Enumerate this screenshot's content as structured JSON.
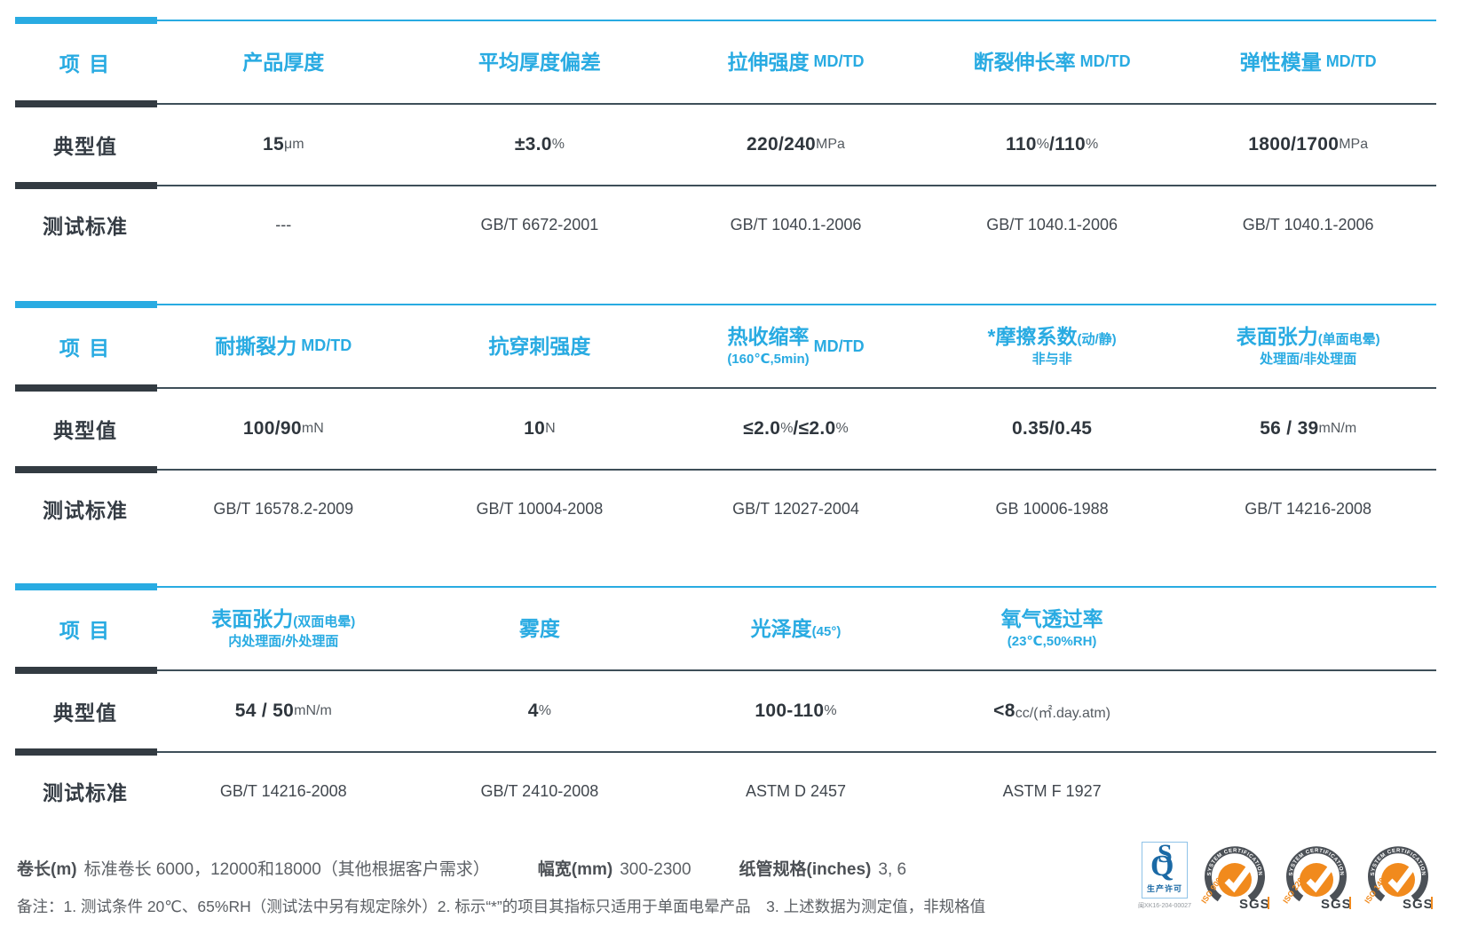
{
  "theme": {
    "accent_blue": "#29abe2",
    "dark_bar": "#333b42",
    "value_text": "#2f363d",
    "orange": "#f18a1d"
  },
  "labels": {
    "item": "项 目",
    "typical": "典型值",
    "standard": "测试标准"
  },
  "tables": [
    {
      "columns": [
        {
          "title": "产品厚度",
          "paren": "",
          "side": "",
          "under": ""
        },
        {
          "title": "平均厚度偏差",
          "paren": "",
          "side": "",
          "under": ""
        },
        {
          "title": "拉伸强度",
          "paren": "",
          "side": "MD/TD",
          "under": ""
        },
        {
          "title": "断裂伸长率",
          "paren": "",
          "side": "MD/TD",
          "under": ""
        },
        {
          "title": "弹性模量",
          "paren": "",
          "side": "MD/TD",
          "under": ""
        }
      ],
      "typical": [
        [
          {
            "t": "15",
            "b": true
          },
          {
            "t": "μm"
          }
        ],
        [
          {
            "t": "±3.0",
            "b": true
          },
          {
            "t": "%"
          }
        ],
        [
          {
            "t": "220/240",
            "b": true
          },
          {
            "t": "MPa"
          }
        ],
        [
          {
            "t": "110",
            "b": true
          },
          {
            "t": "%"
          },
          {
            "t": " / ",
            "b": true
          },
          {
            "t": "110",
            "b": true
          },
          {
            "t": "%"
          }
        ],
        [
          {
            "t": "1800/1700",
            "b": true
          },
          {
            "t": "MPa"
          }
        ]
      ],
      "standards": [
        "---",
        "GB/T 6672-2001",
        "GB/T 1040.1-2006",
        "GB/T 1040.1-2006",
        "GB/T 1040.1-2006"
      ]
    },
    {
      "columns": [
        {
          "title": "耐撕裂力",
          "paren": "",
          "side": "MD/TD",
          "under": ""
        },
        {
          "title": "抗穿刺强度",
          "paren": "",
          "side": "",
          "under": ""
        },
        {
          "title": "热收缩率",
          "paren": "",
          "side": "MD/TD",
          "under": "(160℃,5min)"
        },
        {
          "title": "*摩擦系数",
          "paren": "(动/静)",
          "side": "",
          "under": "非与非"
        },
        {
          "title": "表面张力",
          "paren": "(单面电晕)",
          "side": "",
          "under": "处理面/非处理面"
        }
      ],
      "typical": [
        [
          {
            "t": "100/90",
            "b": true
          },
          {
            "t": "mN"
          }
        ],
        [
          {
            "t": "10",
            "b": true
          },
          {
            "t": "N"
          }
        ],
        [
          {
            "t": "≤2.0",
            "b": true
          },
          {
            "t": "%"
          },
          {
            "t": " / ",
            "b": true
          },
          {
            "t": "≤2.0",
            "b": true
          },
          {
            "t": "%"
          }
        ],
        [
          {
            "t": "0.35/0.45",
            "b": true
          }
        ],
        [
          {
            "t": "56 / 39",
            "b": true
          },
          {
            "t": "mN/m"
          }
        ]
      ],
      "standards": [
        "GB/T 16578.2-2009",
        "GB/T 10004-2008",
        "GB/T 12027-2004",
        "GB 10006-1988",
        "GB/T 14216-2008"
      ]
    },
    {
      "columns": [
        {
          "title": "表面张力",
          "paren": "(双面电晕)",
          "side": "",
          "under": "内处理面/外处理面"
        },
        {
          "title": "雾度",
          "paren": "",
          "side": "",
          "under": ""
        },
        {
          "title": "光泽度",
          "paren": "(45°)",
          "side": "",
          "under": ""
        },
        {
          "title": "氧气透过率",
          "paren": "",
          "side": "",
          "under": "(23℃,50%RH)"
        },
        {
          "title": "",
          "paren": "",
          "side": "",
          "under": ""
        }
      ],
      "typical": [
        [
          {
            "t": "54 / 50",
            "b": true
          },
          {
            "t": "mN/m"
          }
        ],
        [
          {
            "t": "4",
            "b": true
          },
          {
            "t": "%"
          }
        ],
        [
          {
            "t": "100-110",
            "b": true
          },
          {
            "t": "%"
          }
        ],
        [
          {
            "t": "<8",
            "b": true
          },
          {
            "t": "cc/(㎡.day.atm)"
          }
        ],
        []
      ],
      "standards": [
        "GB/T 14216-2008",
        "GB/T 2410-2008",
        "ASTM D 2457",
        "ASTM F 1927",
        ""
      ]
    }
  ],
  "footer": {
    "roll": {
      "label": "卷长(m)",
      "text": "标准卷长 6000，12000和18000（其他根据客户需求）"
    },
    "width": {
      "label": "幅宽(mm)",
      "text": "300-2300"
    },
    "core": {
      "label": "纸管规格(inches)",
      "text": "3, 6"
    },
    "remark": "备注：1. 测试条件 20℃、65%RH（测试法中另有规定除外）2. 标示“*”的项目其指标只适用于单面电晕产品　3. 上述数据为测定值，非规格值"
  },
  "certs": {
    "qs": {
      "letter_s": "S",
      "letter_q": "Q",
      "label": "生产许可",
      "code": "闽XK16-204-00027"
    },
    "arc_text": "SYSTEM CERTIFICATION",
    "sgs_label": "SGS",
    "badges": [
      {
        "iso": "ISO 9001"
      },
      {
        "iso": "ISO 22000"
      },
      {
        "iso": "ISO 14001"
      }
    ]
  }
}
